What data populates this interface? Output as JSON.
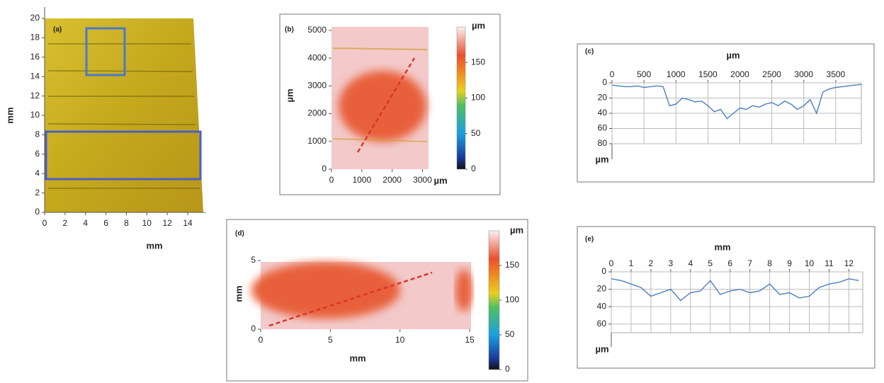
{
  "chart_data": [
    {
      "type": "image",
      "label": "(a)",
      "xlabel": "mm",
      "ylabel": "mm",
      "xlim": [
        0,
        14
      ],
      "ylim": [
        0,
        20
      ],
      "xticks": [
        0,
        2,
        4,
        6,
        8,
        10,
        12,
        14
      ],
      "yticks": [
        0,
        2,
        4,
        6,
        8,
        10,
        12,
        14,
        16,
        18,
        20
      ]
    },
    {
      "type": "heatmap",
      "label": "(b)",
      "xlabel": "µm",
      "ylabel": "µm",
      "colorbar_label": "µm",
      "xlim": [
        0,
        3200
      ],
      "ylim": [
        0,
        5100
      ],
      "xticks": [
        0,
        1000,
        2000,
        3000
      ],
      "yticks": [
        0,
        1000,
        2000,
        3000,
        4000,
        5000
      ],
      "clim": [
        0,
        200
      ],
      "cticks": [
        0,
        50,
        100,
        150
      ]
    },
    {
      "type": "line",
      "label": "(c)",
      "xlabel": "µm",
      "ylabel": "µm",
      "grid": true,
      "color": "#4a7fc0",
      "xlim": [
        0,
        3900
      ],
      "ylim": [
        0,
        80
      ],
      "xticks": [
        0,
        500,
        1000,
        1500,
        2000,
        2500,
        3000,
        3500
      ],
      "yticks": [
        0,
        20,
        40,
        60,
        80
      ],
      "x": [
        0,
        100,
        200,
        300,
        400,
        500,
        600,
        700,
        800,
        900,
        1000,
        1100,
        1200,
        1300,
        1400,
        1500,
        1600,
        1700,
        1800,
        1900,
        2000,
        2100,
        2200,
        2300,
        2400,
        2500,
        2600,
        2700,
        2800,
        2900,
        3000,
        3100,
        3200,
        3300,
        3400,
        3500,
        3600,
        3700,
        3800,
        3900
      ],
      "values": [
        3,
        4,
        5,
        5,
        4,
        6,
        5,
        4,
        5,
        30,
        28,
        20,
        22,
        25,
        24,
        30,
        38,
        35,
        47,
        40,
        33,
        35,
        30,
        32,
        28,
        26,
        30,
        24,
        28,
        35,
        30,
        22,
        40,
        12,
        8,
        6,
        5,
        4,
        3,
        2
      ]
    },
    {
      "type": "heatmap",
      "label": "(d)",
      "xlabel": "mm",
      "ylabel": "mm",
      "colorbar_label": "µm",
      "xlim": [
        0,
        15
      ],
      "ylim": [
        0,
        5
      ],
      "xticks": [
        0,
        5,
        10,
        15
      ],
      "yticks": [
        0,
        5
      ],
      "clim": [
        0,
        200
      ],
      "cticks": [
        0,
        50,
        100,
        150
      ]
    },
    {
      "type": "line",
      "label": "(e)",
      "xlabel": "mm",
      "ylabel": "µm",
      "grid": true,
      "color": "#4a7fc0",
      "xlim": [
        0,
        12.7
      ],
      "ylim": [
        0,
        70
      ],
      "xticks": [
        0,
        1,
        2,
        3,
        4,
        5,
        6,
        7,
        8,
        9,
        10,
        11,
        12
      ],
      "yticks": [
        0,
        20,
        40,
        60
      ],
      "x": [
        0,
        0.5,
        1,
        1.5,
        2,
        2.5,
        3,
        3.5,
        4,
        4.5,
        5,
        5.5,
        6,
        6.5,
        7,
        7.5,
        8,
        8.5,
        9,
        9.5,
        10,
        10.5,
        11,
        11.5,
        12,
        12.5
      ],
      "values": [
        8,
        10,
        14,
        18,
        28,
        24,
        20,
        33,
        24,
        22,
        10,
        26,
        22,
        20,
        24,
        22,
        14,
        26,
        24,
        30,
        28,
        18,
        14,
        12,
        8,
        10
      ]
    }
  ]
}
